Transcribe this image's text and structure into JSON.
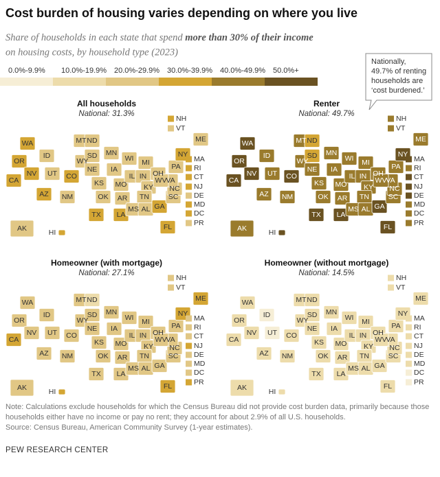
{
  "title": "Cost burden of housing varies depending on where you live",
  "subtitle": [
    "Share of households in each state that spend ",
    "more than 30% of their income",
    "on housing costs, by household type (2023)"
  ],
  "legend": [
    {
      "value": 0,
      "label": "0.0%-9.9%",
      "color": "#f6eed6"
    },
    {
      "value": 10,
      "label": "10.0%-19.9%",
      "color": "#eddcab"
    },
    {
      "value": 20,
      "label": "20.0%-29.9%",
      "color": "#e1c785"
    },
    {
      "value": 30,
      "label": "30.0%-39.9%",
      "color": "#d4a634"
    },
    {
      "value": 40,
      "label": "40.0%-49.9%",
      "color": "#9a7b2d"
    },
    {
      "value": 50,
      "label": "50.0%+",
      "color": "#6a5222"
    }
  ],
  "callout": [
    "Nationally,",
    "49.7% of renting",
    "households are",
    "‘cost burdened.’"
  ],
  "chart_data": [
    {
      "type": "map",
      "title": "All households",
      "subtitle": "National: 31.3%",
      "categories": [
        "WA",
        "OR",
        "CA",
        "NV",
        "ID",
        "MT",
        "WY",
        "UT",
        "AZ",
        "CO",
        "NM",
        "ND",
        "SD",
        "NE",
        "KS",
        "OK",
        "TX",
        "MN",
        "IA",
        "MO",
        "AR",
        "LA",
        "WI",
        "IL",
        "MI",
        "IN",
        "OH",
        "KY",
        "TN",
        "MS",
        "AL",
        "GA",
        "FL",
        "SC",
        "NC",
        "VA",
        "WV",
        "PA",
        "NY",
        "ME",
        "NH",
        "VT",
        "MA",
        "RI",
        "CT",
        "NJ",
        "DE",
        "MD",
        "DC",
        "PR",
        "AK",
        "HI"
      ],
      "values": [
        33,
        34,
        38,
        34,
        29,
        28,
        24,
        29,
        31,
        33,
        29,
        22,
        23,
        25,
        26,
        27,
        31,
        27,
        24,
        27,
        27,
        31,
        27,
        29,
        28,
        26,
        27,
        27,
        29,
        29,
        27,
        30,
        37,
        29,
        29,
        29,
        24,
        29,
        35,
        29,
        30,
        29,
        32,
        31,
        32,
        34,
        29,
        30,
        31,
        28,
        28,
        37
      ]
    },
    {
      "type": "map",
      "title": "Renter",
      "subtitle": "National: 49.7%",
      "categories": [
        "WA",
        "OR",
        "CA",
        "NV",
        "ID",
        "MT",
        "WY",
        "UT",
        "AZ",
        "CO",
        "NM",
        "ND",
        "SD",
        "NE",
        "KS",
        "OK",
        "TX",
        "MN",
        "IA",
        "MO",
        "AR",
        "LA",
        "WI",
        "IL",
        "MI",
        "IN",
        "OH",
        "KY",
        "TN",
        "MS",
        "AL",
        "GA",
        "FL",
        "SC",
        "NC",
        "VA",
        "WV",
        "PA",
        "NY",
        "ME",
        "NH",
        "VT",
        "MA",
        "RI",
        "CT",
        "NJ",
        "DE",
        "MD",
        "DC",
        "PR",
        "AK",
        "HI"
      ],
      "values": [
        51,
        53,
        55,
        52,
        47,
        44,
        42,
        47,
        49,
        51,
        47,
        34,
        36,
        42,
        43,
        45,
        51,
        45,
        42,
        44,
        44,
        52,
        44,
        48,
        49,
        46,
        46,
        45,
        48,
        48,
        46,
        50,
        57,
        48,
        47,
        47,
        41,
        47,
        52,
        46,
        47,
        49,
        51,
        48,
        51,
        52,
        50,
        49,
        46,
        45,
        44,
        54
      ]
    },
    {
      "type": "map",
      "title": "Homeowner (with mortgage)",
      "subtitle": "National: 27.1%",
      "categories": [
        "WA",
        "OR",
        "CA",
        "NV",
        "ID",
        "MT",
        "WY",
        "UT",
        "AZ",
        "CO",
        "NM",
        "ND",
        "SD",
        "NE",
        "KS",
        "OK",
        "TX",
        "MN",
        "IA",
        "MO",
        "AR",
        "LA",
        "WI",
        "IL",
        "MI",
        "IN",
        "OH",
        "KY",
        "TN",
        "MS",
        "AL",
        "GA",
        "FL",
        "SC",
        "NC",
        "VA",
        "WV",
        "PA",
        "NY",
        "ME",
        "NH",
        "VT",
        "MA",
        "RI",
        "CT",
        "NJ",
        "DE",
        "MD",
        "DC",
        "PR",
        "AK",
        "HI"
      ],
      "values": [
        28,
        28,
        35,
        27,
        26,
        27,
        21,
        24,
        24,
        25,
        25,
        18,
        20,
        21,
        21,
        23,
        26,
        21,
        20,
        22,
        23,
        27,
        22,
        25,
        22,
        21,
        21,
        23,
        24,
        25,
        23,
        25,
        33,
        25,
        23,
        24,
        20,
        23,
        31,
        30,
        24,
        28,
        27,
        28,
        27,
        30,
        24,
        23,
        27,
        31,
        23,
        36
      ]
    },
    {
      "type": "map",
      "title": "Homeowner (without mortgage)",
      "subtitle": "National: 14.5%",
      "categories": [
        "WA",
        "OR",
        "CA",
        "NV",
        "ID",
        "MT",
        "WY",
        "UT",
        "AZ",
        "CO",
        "NM",
        "ND",
        "SD",
        "NE",
        "KS",
        "OK",
        "TX",
        "MN",
        "IA",
        "MO",
        "AR",
        "LA",
        "WI",
        "IL",
        "MI",
        "IN",
        "OH",
        "KY",
        "TN",
        "MS",
        "AL",
        "GA",
        "FL",
        "SC",
        "NC",
        "VA",
        "WV",
        "PA",
        "NY",
        "ME",
        "NH",
        "VT",
        "MA",
        "RI",
        "CT",
        "NJ",
        "DE",
        "MD",
        "DC",
        "PR",
        "AK",
        "HI"
      ],
      "values": [
        13,
        15,
        15,
        13,
        9,
        12,
        11,
        8,
        13,
        11,
        14,
        12,
        13,
        14,
        14,
        13,
        17,
        13,
        14,
        13,
        14,
        17,
        15,
        18,
        15,
        12,
        14,
        13,
        12,
        15,
        14,
        14,
        17,
        14,
        13,
        12,
        13,
        16,
        19,
        15,
        15,
        16,
        15,
        16,
        18,
        19,
        11,
        14,
        9,
        9,
        13,
        15
      ]
    }
  ],
  "note": "Note: Calculations exclude households for which the Census Bureau did not provide cost burden data, primarily because those households either have no income or pay no rent; they account for about 2.9% of all U.S. households.",
  "source": "Source: Census Bureau, American Community Survey (1-year estimates).",
  "footer": "PEW RESEARCH CENTER"
}
